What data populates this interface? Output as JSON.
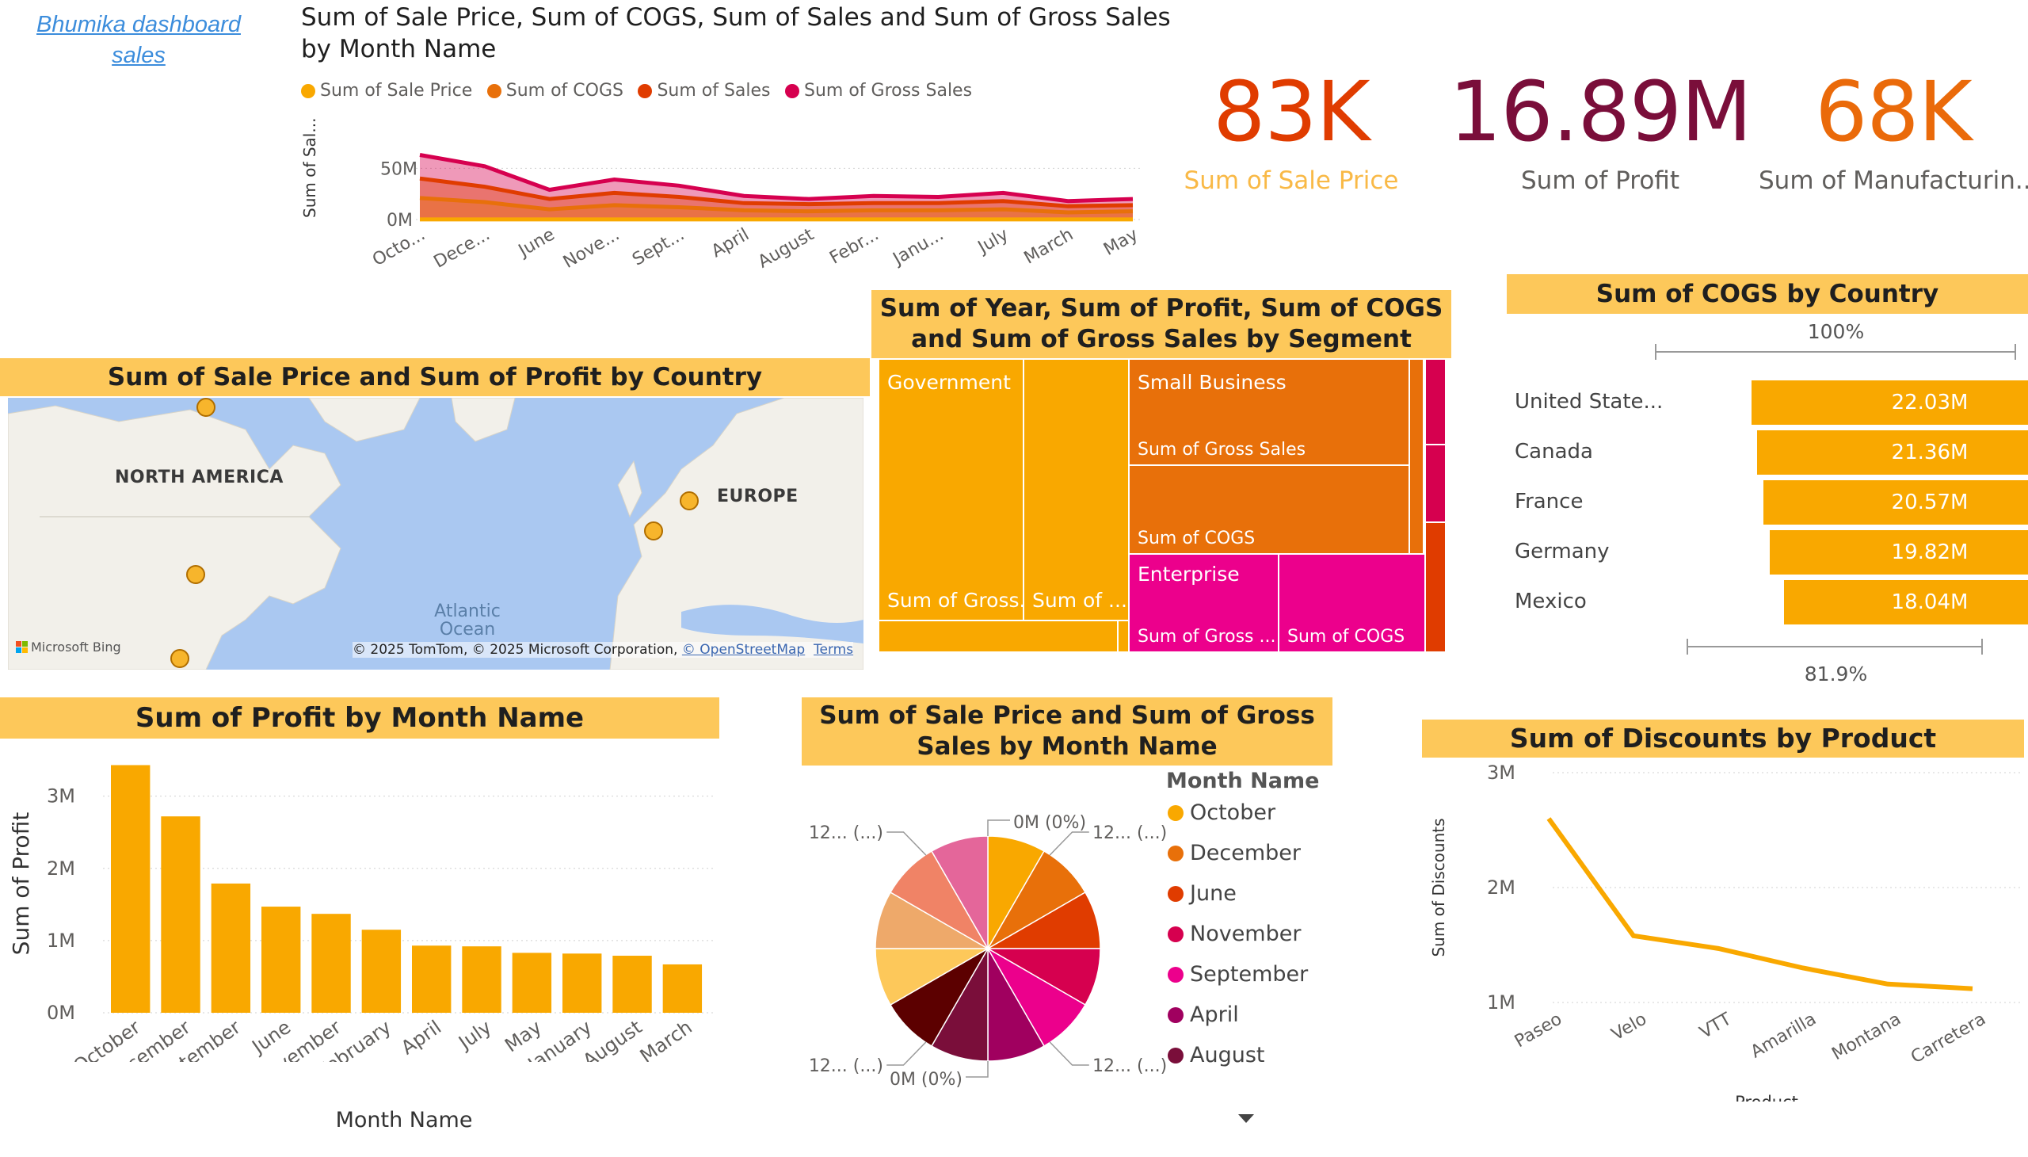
{
  "header": {
    "dashboard_title": "Bhumika dashboard sales"
  },
  "area_chart": {
    "title_line1": "Sum of Sale Price, Sum of COGS, Sum of Sales and Sum of Gross Sales",
    "title_line2": "by Month Name",
    "ylabel": "Sum of Sal...",
    "legend": [
      "Sum of Sale Price",
      "Sum of COGS",
      "Sum of  Sales",
      "Sum of Gross Sales"
    ],
    "tick_labels": [
      "Octo...",
      "Dece...",
      "June",
      "Nove...",
      "Sept...",
      "April",
      "August",
      "Febr...",
      "Janu...",
      "July",
      "March",
      "May"
    ],
    "y_ticks": [
      "50M",
      "0M"
    ]
  },
  "kpis": [
    {
      "value": "83K",
      "label": "Sum of Sale Price",
      "value_color": "#e03c00",
      "label_color": "#f9b946"
    },
    {
      "value": "16.89M",
      "label": "Sum of Profit",
      "value_color": "#7a0e3a",
      "label_color": "#605e5c"
    },
    {
      "value": "68K",
      "label": "Sum of Manufacturin...",
      "value_color": "#ea6a0a",
      "label_color": "#605e5c"
    }
  ],
  "map": {
    "title": "Sum of Sale Price and Sum of Profit by Country",
    "label_na": "NORTH AMERICA",
    "label_eu": "EUROPE",
    "label_ocean": "Atlantic\nOcean",
    "logo": "Microsoft Bing",
    "copyright": "© 2025 TomTom, © 2025 Microsoft Corporation,",
    "osm": "© OpenStreetMap",
    "terms": "Terms"
  },
  "treemap": {
    "title": "Sum of Year, Sum of Profit, Sum of COGS and Sum of Gross Sales by Segment",
    "labels": {
      "government": "Government",
      "gov_gross": "Sum of Gross...",
      "gov_sum": "Sum of ...",
      "small_business": "Small Business",
      "sb_gross": "Sum of Gross Sales",
      "sb_cogs": "Sum of COGS",
      "enterprise": "Enterprise",
      "ent_gross": "Sum of Gross ...",
      "ent_cogs": "Sum of COGS"
    }
  },
  "funnel": {
    "title": "Sum of COGS by Country",
    "top_pct": "100%",
    "bottom_pct": "81.9%",
    "items": [
      {
        "country": "United State...",
        "label": "22.03M",
        "value": 22.03
      },
      {
        "country": "Canada",
        "label": "21.36M",
        "value": 21.36
      },
      {
        "country": "France",
        "label": "20.57M",
        "value": 20.57
      },
      {
        "country": "Germany",
        "label": "19.82M",
        "value": 19.82
      },
      {
        "country": "Mexico",
        "label": "18.04M",
        "value": 18.04
      }
    ]
  },
  "pie": {
    "title": "Sum of Sale Price and Sum of Gross Sales by Month Name",
    "legend_title": "Month Name",
    "legend": [
      {
        "name": "October",
        "color": "#f9a800"
      },
      {
        "name": "December",
        "color": "#e8700a"
      },
      {
        "name": "June",
        "color": "#e03c00"
      },
      {
        "name": "November",
        "color": "#d6004f"
      },
      {
        "name": "September",
        "color": "#ec008c"
      },
      {
        "name": "April",
        "color": "#a0005f"
      },
      {
        "name": "August",
        "color": "#7a0e3a"
      }
    ],
    "callouts": [
      "0M (0%)",
      "12... (...)",
      "12... (...)",
      "12... (...)",
      "12... (...)",
      "0M (0%)"
    ]
  },
  "bar_chart": {
    "title": "Sum of Profit by Month Name",
    "ylabel": "Sum of Profit",
    "xlabel": "Month Name",
    "y_ticks": [
      "3M",
      "2M",
      "1M",
      "0M"
    ]
  },
  "line_chart": {
    "title": "Sum of Discounts by Product",
    "ylabel": "Sum of Discounts",
    "xlabel": "Product",
    "y_ticks": [
      "3M",
      "2M",
      "1M"
    ]
  },
  "chart_data": [
    {
      "type": "area",
      "title": "Sum of Sale Price, Sum of COGS, Sum of Sales and Sum of Gross Sales by Month Name",
      "xlabel": "",
      "ylabel": "Sum of Sal...",
      "categories": [
        "October",
        "December",
        "June",
        "November",
        "September",
        "April",
        "August",
        "February",
        "January",
        "July",
        "March",
        "May"
      ],
      "ylim": [
        0,
        75
      ],
      "series": [
        {
          "name": "Sum of Sale Price",
          "color": "#f9a800",
          "values": [
            0.1,
            0.1,
            0.1,
            0.1,
            0.1,
            0.1,
            0.1,
            0.1,
            0.1,
            0.1,
            0.1,
            0.1
          ]
        },
        {
          "name": "Sum of COGS",
          "color": "#e8700a",
          "values": [
            21,
            17,
            10,
            14,
            12,
            9,
            8,
            9,
            9,
            10,
            7,
            8
          ]
        },
        {
          "name": "Sum of  Sales",
          "color": "#e03c00",
          "values": [
            40,
            32,
            20,
            26,
            22,
            16,
            15,
            16,
            16,
            18,
            13,
            14
          ]
        },
        {
          "name": "Sum of Gross Sales",
          "color": "#d6004f",
          "values": [
            63,
            52,
            29,
            39,
            33,
            23,
            20,
            23,
            22,
            26,
            18,
            20
          ]
        }
      ]
    },
    {
      "type": "bar",
      "title": "Sum of Profit by Month Name",
      "xlabel": "Month Name",
      "ylabel": "Sum of Profit",
      "categories": [
        "October",
        "December",
        "September",
        "June",
        "November",
        "February",
        "April",
        "July",
        "May",
        "January",
        "August",
        "March"
      ],
      "values": [
        3.43,
        2.72,
        1.79,
        1.47,
        1.37,
        1.15,
        0.93,
        0.92,
        0.83,
        0.82,
        0.79,
        0.67
      ],
      "ylim": [
        0,
        3.6
      ],
      "color": "#f9a800"
    },
    {
      "type": "line",
      "title": "Sum of Discounts by Product",
      "xlabel": "Product",
      "ylabel": "Sum of Discounts",
      "categories": [
        "Paseo",
        "Velo",
        "VTT",
        "Amarilla",
        "Montana",
        "Carretera"
      ],
      "values": [
        2.6,
        1.58,
        1.47,
        1.3,
        1.16,
        1.12
      ],
      "ylim": [
        1,
        3
      ],
      "color": "#f9a800"
    },
    {
      "type": "pie",
      "title": "Sum of Sale Price and Sum of Gross Sales by Month Name",
      "slices": [
        {
          "name": "October",
          "value": 1,
          "color": "#f9a800"
        },
        {
          "name": "December",
          "value": 1,
          "color": "#e8700a"
        },
        {
          "name": "June",
          "value": 1,
          "color": "#e03c00"
        },
        {
          "name": "November",
          "value": 1,
          "color": "#d6004f"
        },
        {
          "name": "September",
          "value": 1,
          "color": "#ec008c"
        },
        {
          "name": "April",
          "value": 1,
          "color": "#a0005f"
        },
        {
          "name": "August",
          "value": 1,
          "color": "#7a0e3a"
        },
        {
          "name": "",
          "value": 1,
          "color": "#5c0000"
        },
        {
          "name": "",
          "value": 1,
          "color": "#fdc85a"
        },
        {
          "name": "",
          "value": 1,
          "color": "#eea96a"
        },
        {
          "name": "",
          "value": 1,
          "color": "#f08366"
        },
        {
          "name": "",
          "value": 1,
          "color": "#e4669a"
        }
      ]
    }
  ]
}
